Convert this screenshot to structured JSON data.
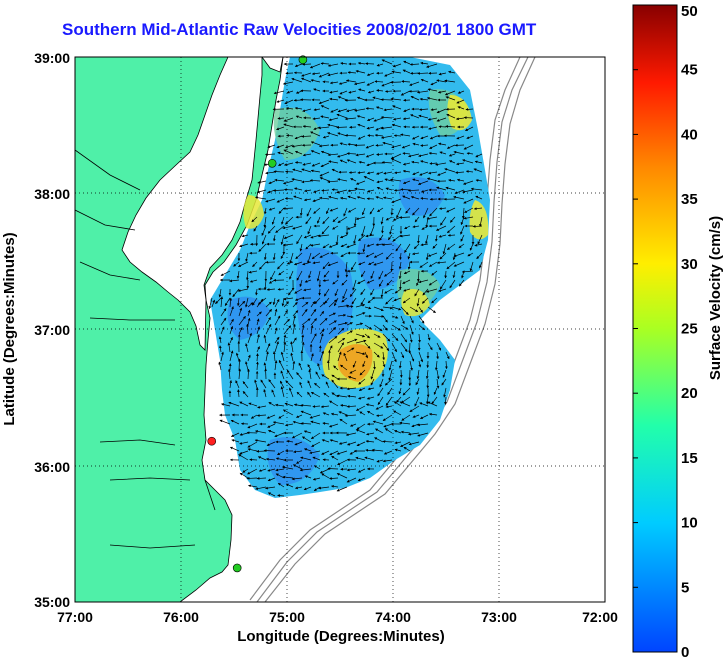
{
  "title": "Southern Mid-Atlantic Raw Velocities 2008/02/01 1800 GMT",
  "chart_data": {
    "type": "map",
    "title": "Southern Mid-Atlantic Raw Velocities 2008/02/01 1800 GMT",
    "xlabel": "Longitude (Degrees:Minutes)",
    "ylabel": "Latitude (Degrees:Minutes)",
    "x_ticks": [
      "77:00",
      "76:00",
      "75:00",
      "74:00",
      "73:00",
      "72:00"
    ],
    "y_ticks": [
      "39:00",
      "38:00",
      "37:00",
      "36:00",
      "35:00"
    ],
    "xlim": [
      -77,
      -72
    ],
    "ylim": [
      35,
      39
    ],
    "colorbar": {
      "label": "Surface Velocity (cm/s)",
      "range": [
        0,
        50
      ],
      "ticks": [
        "50",
        "45",
        "40",
        "35",
        "30",
        "25",
        "20",
        "15",
        "10",
        "5",
        "0"
      ]
    },
    "stations": [
      {
        "lon": -74.85,
        "lat": 38.98,
        "color": "#22cc22"
      },
      {
        "lon": -75.14,
        "lat": 38.22,
        "color": "#22cc22"
      },
      {
        "lon": -75.71,
        "lat": 36.18,
        "color": "#ff2020"
      },
      {
        "lon": -75.47,
        "lat": 35.25,
        "color": "#22cc22"
      }
    ]
  },
  "colors": {
    "land": "#4ff0a8",
    "ocean_bg": "#ffffff",
    "field_main": "#33bbee",
    "field_low": "#2f8ff0",
    "field_high": "#e6e83a",
    "field_peak": "#f0a020"
  }
}
